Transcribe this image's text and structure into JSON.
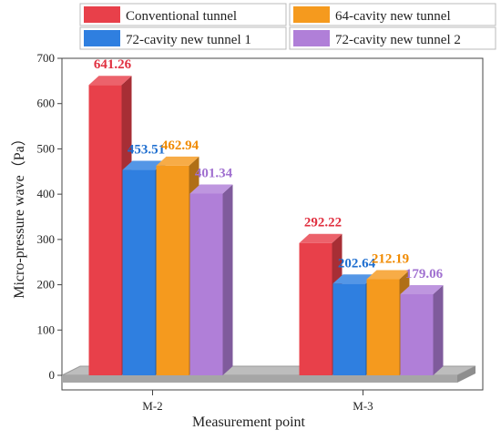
{
  "chart_data": {
    "type": "bar",
    "title": "",
    "xlabel": "Measurement point",
    "ylabel": "Micro-pressure wave（Pa）",
    "categories": [
      "M-2",
      "M-3"
    ],
    "ylim": [
      0,
      700
    ],
    "yticks": [
      "0",
      "100",
      "200",
      "300",
      "400",
      "500",
      "600",
      "700"
    ],
    "legend_position": "top",
    "grid": false,
    "style": "3d-bar",
    "series": [
      {
        "name": "Conventional tunnel",
        "color": "#e8404a",
        "label_color": "#e03040",
        "values": [
          641.26,
          292.22
        ],
        "labels": [
          "641.26",
          "292.22"
        ]
      },
      {
        "name": "72-cavity new tunnel 1",
        "color": "#2f7fe0",
        "label_color": "#1f6fd0",
        "values": [
          453.51,
          202.64
        ],
        "labels": [
          "453.51",
          "202.64"
        ]
      },
      {
        "name": "64-cavity new tunnel",
        "color": "#f59a1e",
        "label_color": "#f08a00",
        "values": [
          462.94,
          212.19
        ],
        "labels": [
          "462.94",
          "212.19"
        ]
      },
      {
        "name": "72-cavity new tunnel 2",
        "color": "#b07fd8",
        "label_color": "#a070d0",
        "values": [
          401.34,
          179.06
        ],
        "labels": [
          "401.34",
          "179.06"
        ]
      }
    ]
  }
}
